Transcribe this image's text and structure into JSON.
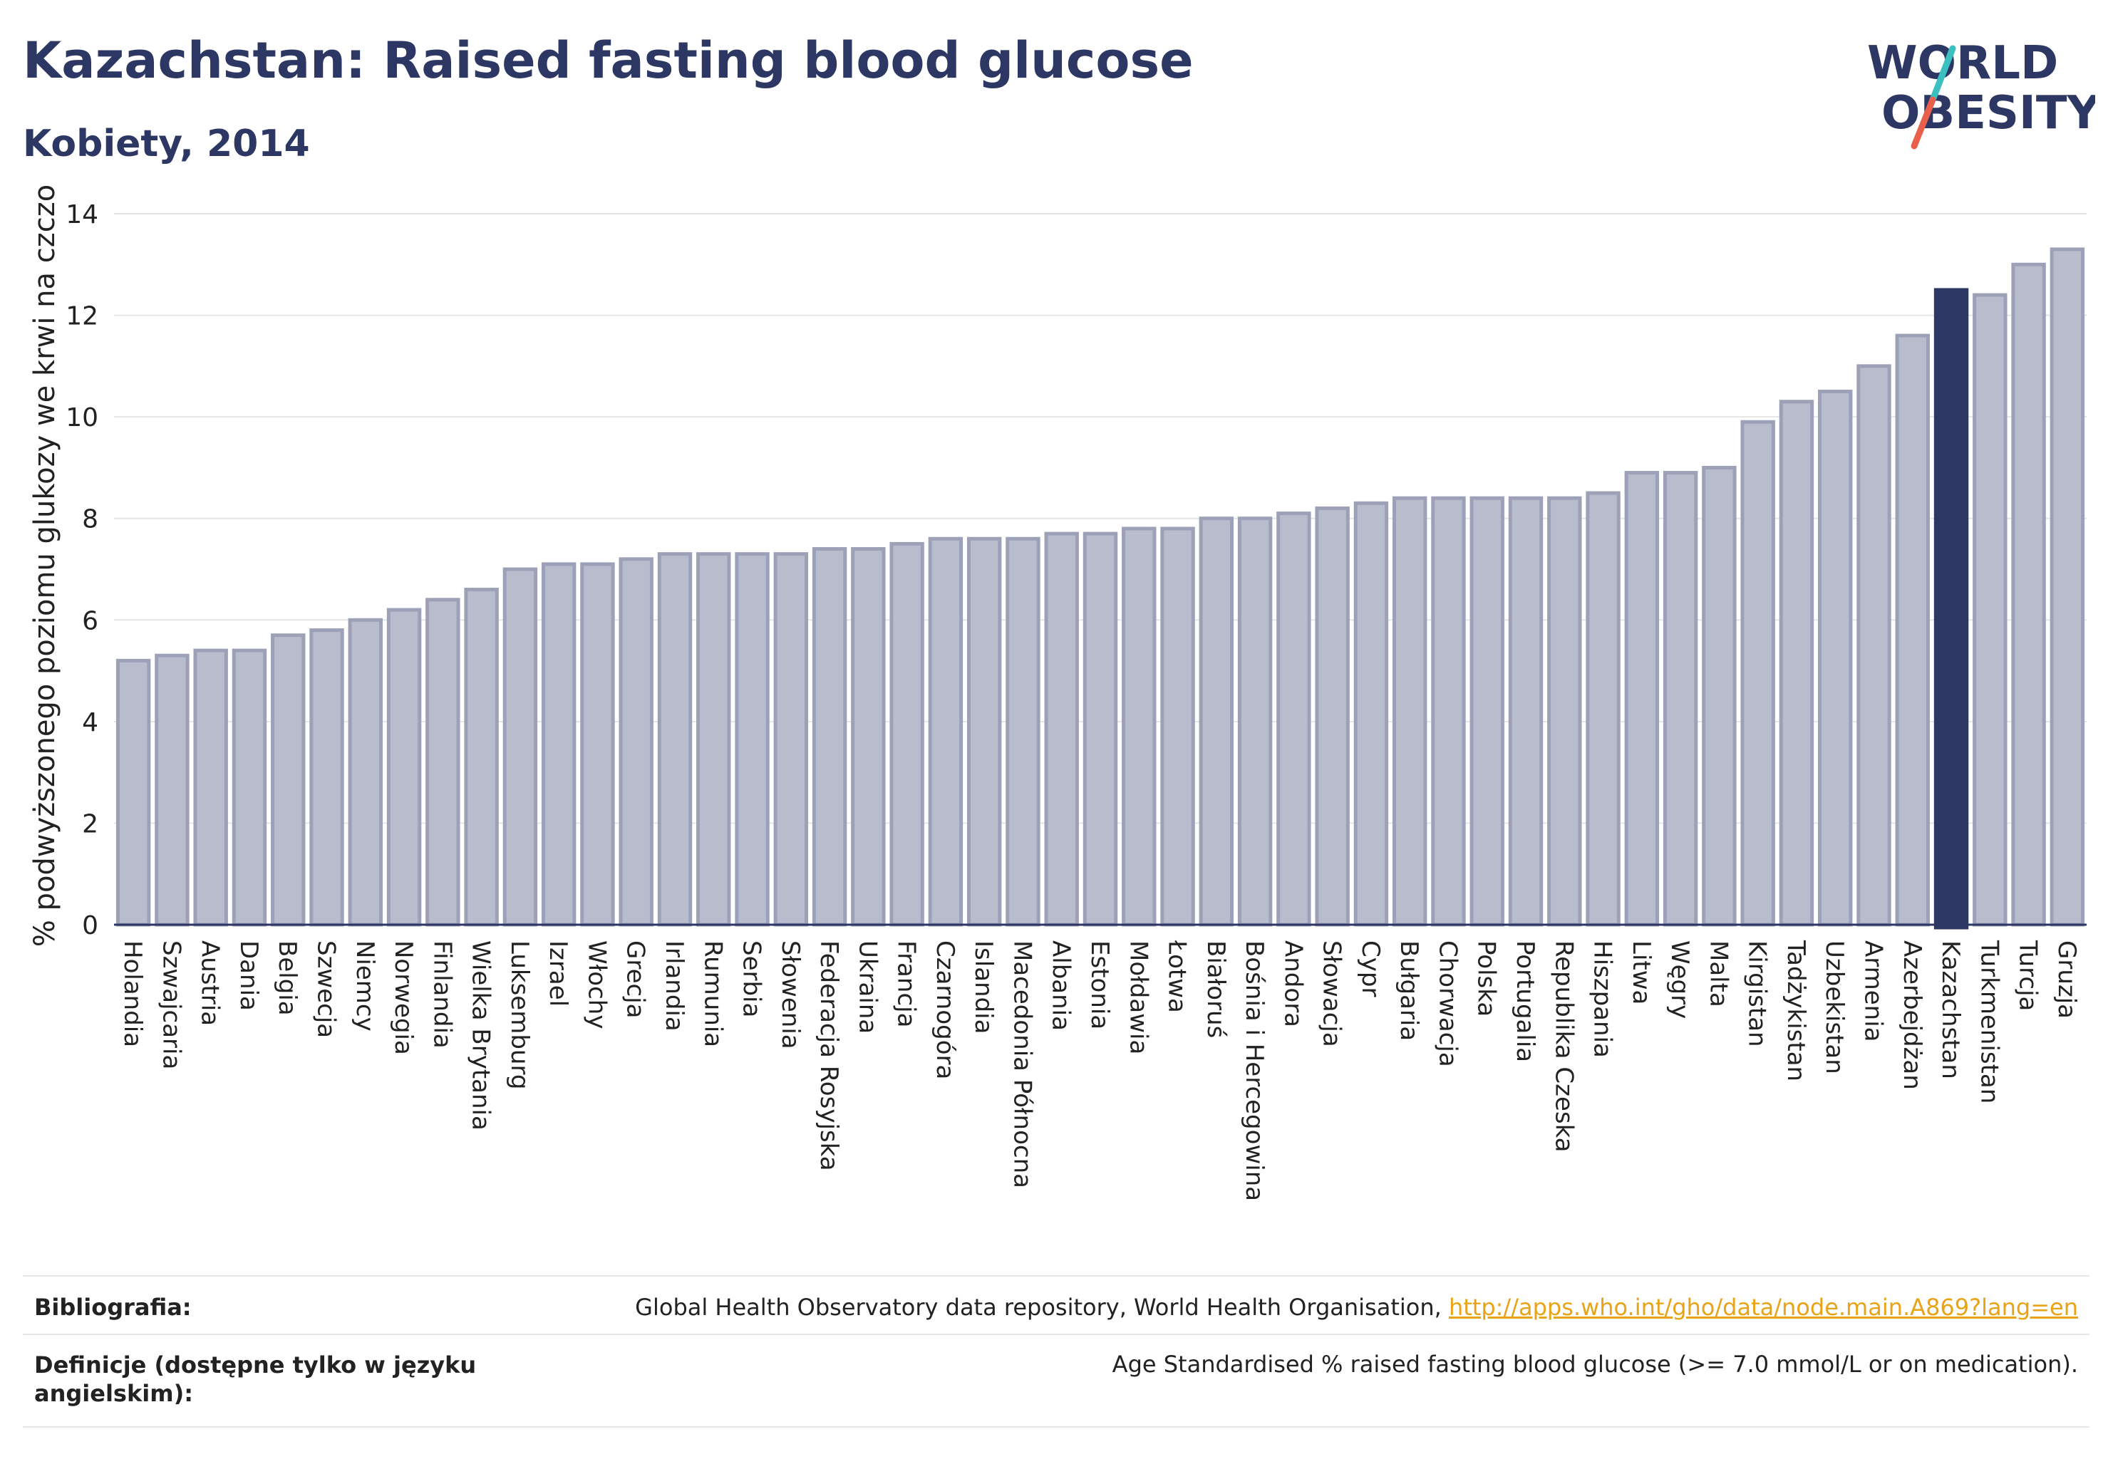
{
  "header": {
    "title": "Kazachstan: Raised fasting blood glucose",
    "subtitle": "Kobiety, 2014"
  },
  "logo": {
    "line1": "WORLD",
    "line2": "OBESITY",
    "text_color": "#2d3763",
    "slash_top": "#3bbfbf",
    "slash_bottom": "#e8604c"
  },
  "colors": {
    "bar": "#b9bccc",
    "bar_border": "#9da1b8",
    "highlight": "#2d3763",
    "grid": "#e6e6e6",
    "axis": "#2d3763"
  },
  "chart_data": {
    "type": "bar",
    "title": "Kazachstan: Raised fasting blood glucose",
    "subtitle": "Kobiety, 2014",
    "xlabel": "",
    "ylabel": "% podwyższonego poziomu glukozy we krwi na czczo",
    "ylim": [
      0,
      14
    ],
    "yticks": [
      0,
      2,
      4,
      6,
      8,
      10,
      12,
      14
    ],
    "grid": "horizontal",
    "highlight": "Kazachstan",
    "categories": [
      "Holandia",
      "Szwajcaria",
      "Austria",
      "Dania",
      "Belgia",
      "Szwecja",
      "Niemcy",
      "Norwegia",
      "Finlandia",
      "Wielka Brytania",
      "Luksemburg",
      "Izrael",
      "Włochy",
      "Grecja",
      "Irlandia",
      "Rumunia",
      "Serbia",
      "Słowenia",
      "Federacja Rosyjska",
      "Ukraina",
      "Francja",
      "Czarnogóra",
      "Islandia",
      "Macedonia Północna",
      "Albania",
      "Estonia",
      "Mołdawia",
      "Łotwa",
      "Białoruś",
      "Bośnia i Hercegowina",
      "Andora",
      "Słowacja",
      "Cypr",
      "Bułgaria",
      "Chorwacja",
      "Polska",
      "Portugalia",
      "Republika Czeska",
      "Hiszpania",
      "Litwa",
      "Węgry",
      "Malta",
      "Kirgistan",
      "Tadżykistan",
      "Uzbekistan",
      "Armenia",
      "Azerbejdżan",
      "Kazachstan",
      "Turkmenistan",
      "Turcja",
      "Gruzja"
    ],
    "values": [
      5.2,
      5.3,
      5.4,
      5.4,
      5.7,
      5.8,
      6.0,
      6.2,
      6.4,
      6.6,
      7.0,
      7.1,
      7.1,
      7.2,
      7.3,
      7.3,
      7.3,
      7.3,
      7.4,
      7.4,
      7.5,
      7.6,
      7.6,
      7.6,
      7.7,
      7.7,
      7.8,
      7.8,
      8.0,
      8.0,
      8.1,
      8.2,
      8.3,
      8.4,
      8.4,
      8.4,
      8.4,
      8.4,
      8.5,
      8.9,
      8.9,
      9.0,
      9.9,
      10.3,
      10.5,
      11.0,
      11.6,
      12.5,
      12.4,
      13.0,
      13.3
    ]
  },
  "footer": {
    "bibliography_label": "Bibliografia:",
    "bibliography_text": "Global Health Observatory data repository, World Health Organisation, ",
    "bibliography_link": "http://apps.who.int/gho/data/node.main.A869?lang=en",
    "definitions_label_line1": "Definicje (dostępne tylko w języku",
    "definitions_label_line2": "angielskim):",
    "definitions_text": "Age Standardised % raised fasting blood glucose (>= 7.0 mmol/L or on medication)."
  }
}
